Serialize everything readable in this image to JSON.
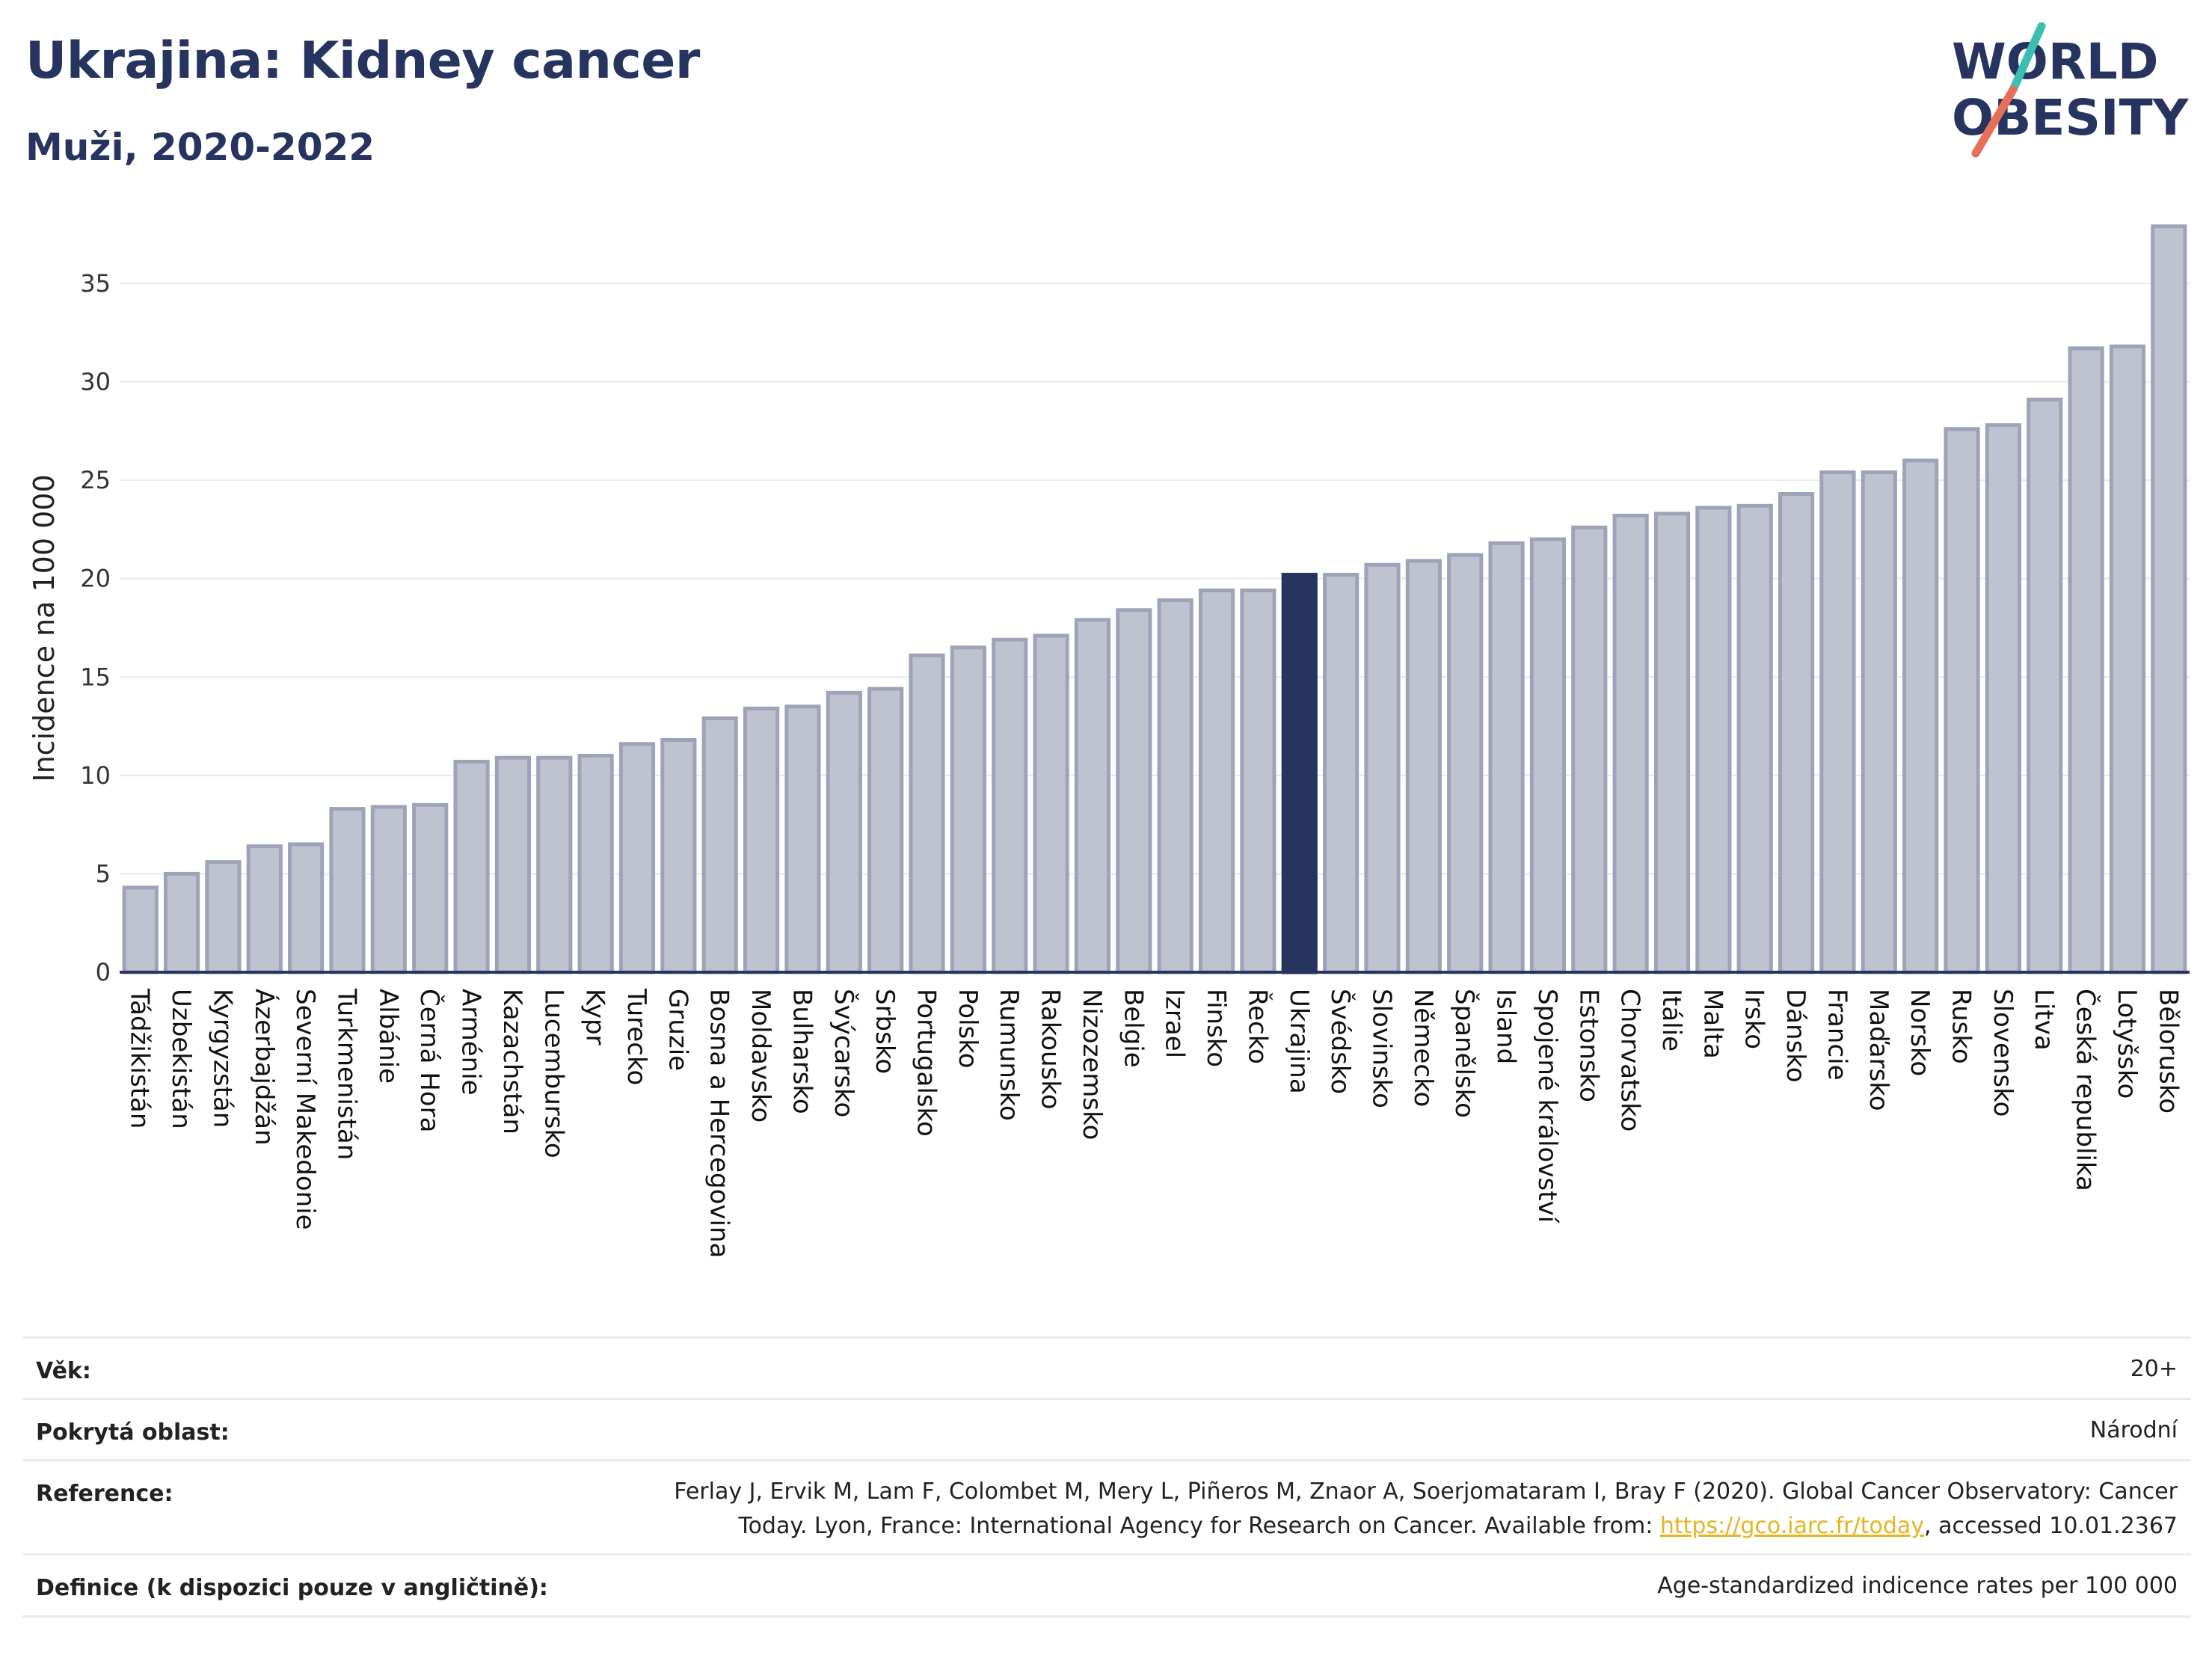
{
  "title": "Ukrajina: Kidney cancer",
  "subtitle": "Muži, 2020-2022",
  "logo": {
    "line1": "WORLD",
    "line2": "OBESITY",
    "colors": {
      "text": "#273460",
      "slash_top": "#3bbfb0",
      "slash_bottom": "#e8705a"
    }
  },
  "colors": {
    "bar": "#bfc3d0",
    "bar_stroke": "#9ea3b8",
    "highlight": "#273460",
    "axis": "#273460",
    "grid": "#e8e9ee"
  },
  "chart_data": {
    "type": "bar",
    "ylabel": "Incidence na 100 000",
    "ylim": [
      0,
      38
    ],
    "yticks": [
      0,
      5,
      10,
      15,
      20,
      25,
      30,
      35
    ],
    "grid": true,
    "highlight": "Ukrajina",
    "categories": [
      "Tádžikistán",
      "Uzbekistán",
      "Kyrgyzstán",
      "Ázerbajdžán",
      "Severní Makedonie",
      "Turkmenistán",
      "Albánie",
      "Černá Hora",
      "Arménie",
      "Kazachstán",
      "Lucembursko",
      "Kypr",
      "Turecko",
      "Gruzie",
      "Bosna a Hercegovina",
      "Moldavsko",
      "Bulharsko",
      "Švýcarsko",
      "Srbsko",
      "Portugalsko",
      "Polsko",
      "Rumunsko",
      "Rakousko",
      "Nizozemsko",
      "Belgie",
      "Izrael",
      "Finsko",
      "Řecko",
      "Ukrajina",
      "Švédsko",
      "Slovinsko",
      "Německo",
      "Španělsko",
      "Island",
      "Spojené království",
      "Estonsko",
      "Chorvatsko",
      "Itálie",
      "Malta",
      "Irsko",
      "Dánsko",
      "Francie",
      "Maďarsko",
      "Norsko",
      "Rusko",
      "Slovensko",
      "Litva",
      "Česká republika",
      "Lotyšsko",
      "Bělorusko"
    ],
    "values": [
      4.3,
      5.0,
      5.6,
      6.4,
      6.5,
      8.3,
      8.4,
      8.5,
      10.7,
      10.9,
      10.9,
      11.0,
      11.6,
      11.8,
      12.9,
      13.4,
      13.5,
      14.2,
      14.4,
      16.1,
      16.5,
      16.9,
      17.1,
      17.9,
      18.4,
      18.9,
      19.4,
      19.4,
      20.2,
      20.2,
      20.7,
      20.9,
      21.2,
      21.8,
      22.0,
      22.6,
      23.2,
      23.3,
      23.6,
      23.7,
      24.3,
      25.4,
      25.4,
      26.0,
      27.6,
      27.8,
      29.1,
      31.7,
      31.8,
      37.9
    ]
  },
  "meta": {
    "age_label": "Věk:",
    "age_value": "20+",
    "coverage_label": "Pokrytá oblast:",
    "coverage_value": "Národní",
    "reference_label": "Reference:",
    "reference_line1": "Ferlay J, Ervik M, Lam F, Colombet M, Mery L, Piñeros M, Znaor A, Soerjomataram I, Bray F (2020). Global Cancer Observatory: Cancer",
    "reference_line2_pre": "Today. Lyon, France: International Agency for Research on Cancer. Available from: ",
    "reference_link": "https://gco.iarc.fr/today",
    "reference_line2_post": ", accessed 10.01.2367",
    "definition_label": "Definice (k dispozici pouze v angličtině):",
    "definition_value": "Age-standardized indicence rates per 100 000"
  }
}
